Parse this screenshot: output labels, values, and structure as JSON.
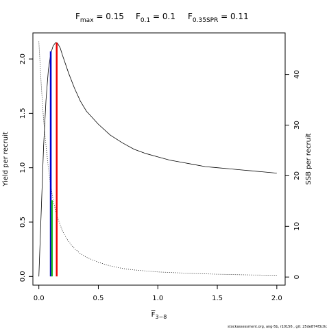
{
  "title": {
    "fmax_label": "F",
    "fmax_sub": "max",
    "fmax_value": " = 0.15",
    "f01_label": "F",
    "f01_sub": "0.1",
    "f01_value": " = 0.1",
    "fspr_label": "F",
    "fspr_sub": "0.35SPR",
    "fspr_value": " = 0.11"
  },
  "footer": "stockassessment.org, ang-5b, r10156 , git: 25de874f3c0c",
  "chart_data": {
    "type": "line",
    "xlabel": "F",
    "xlabel_sub": "3−8",
    "ylabel_left": "Yield per recruit",
    "ylabel_right": "SSB per recruit",
    "xlim": [
      -0.05,
      2.07
    ],
    "ylim_left": [
      -0.08,
      2.24
    ],
    "ylim_right": [
      -1.6,
      48.2
    ],
    "x_ticks": [
      0,
      0.5,
      1,
      1.5,
      2
    ],
    "x_tick_labels": [
      "0.0",
      "0.5",
      "1.0",
      "1.5",
      "2.0"
    ],
    "y_ticks_left": [
      0,
      0.5,
      1,
      1.5,
      2
    ],
    "y_tick_labels_left": [
      "0.0",
      "0.5",
      "1.0",
      "1.5",
      "2.0"
    ],
    "y_ticks_right": [
      0,
      10,
      20,
      30,
      40
    ],
    "y_tick_labels_right": [
      "0",
      "10",
      "20",
      "30",
      "40"
    ],
    "series": [
      {
        "axis": "left",
        "style": "solid",
        "color": "#000000",
        "x": [
          0,
          0.02,
          0.04,
          0.06,
          0.08,
          0.1,
          0.12,
          0.14,
          0.15,
          0.16,
          0.18,
          0.2,
          0.25,
          0.3,
          0.35,
          0.4,
          0.5,
          0.6,
          0.7,
          0.8,
          0.9,
          1.0,
          1.1,
          1.2,
          1.3,
          1.4,
          1.5,
          1.6,
          1.7,
          1.8,
          1.9,
          2.0
        ],
        "y": [
          0,
          0.6,
          1.2,
          1.62,
          1.9,
          2.05,
          2.12,
          2.15,
          2.15,
          2.14,
          2.1,
          2.03,
          1.87,
          1.73,
          1.61,
          1.52,
          1.4,
          1.3,
          1.23,
          1.17,
          1.13,
          1.1,
          1.07,
          1.05,
          1.03,
          1.01,
          1.0,
          0.99,
          0.98,
          0.97,
          0.96,
          0.95
        ]
      },
      {
        "axis": "right",
        "style": "dotted",
        "color": "#000000",
        "x": [
          0,
          0.02,
          0.04,
          0.06,
          0.08,
          0.1,
          0.12,
          0.15,
          0.2,
          0.25,
          0.3,
          0.35,
          0.4,
          0.5,
          0.6,
          0.7,
          0.8,
          1.0,
          1.2,
          1.5,
          1.8,
          2.0
        ],
        "y": [
          46.5,
          38,
          31,
          26,
          21.5,
          18,
          15.2,
          12.2,
          9.0,
          7.0,
          5.6,
          4.6,
          3.9,
          2.9,
          2.2,
          1.7,
          1.4,
          1.0,
          0.8,
          0.55,
          0.4,
          0.35
        ]
      }
    ],
    "reference_lines": [
      {
        "name": "F0.1",
        "x": 0.1,
        "y": 2.07,
        "color": "#0000cc"
      },
      {
        "name": "F0.35SPR",
        "x": 0.11,
        "y": 0.7,
        "color": "#22bb22"
      },
      {
        "name": "Fmax",
        "x": 0.15,
        "y": 2.15,
        "color": "#ee0000"
      }
    ]
  }
}
